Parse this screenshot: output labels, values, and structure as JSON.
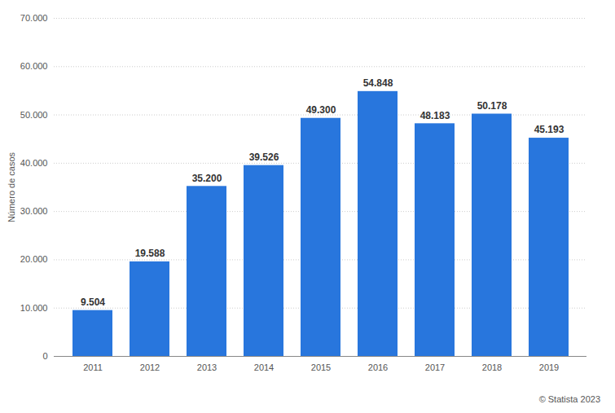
{
  "chart_data": {
    "type": "bar",
    "y_label": "Número de casos",
    "caption": "© Statista 2023",
    "categories": [
      "2011",
      "2012",
      "2013",
      "2014",
      "2015",
      "2016",
      "2017",
      "2018",
      "2019"
    ],
    "values": [
      9504,
      19588,
      35200,
      39526,
      49300,
      54848,
      48183,
      50178,
      45193
    ],
    "value_labels": [
      "9.504",
      "19.588",
      "35.200",
      "39.526",
      "49.300",
      "54.848",
      "48.183",
      "50.178",
      "45.193"
    ],
    "color": "#2876dd",
    "ylim": [
      0,
      70000
    ],
    "yticks": [
      0,
      {
        "value": 10000,
        "label": "10.000"
      },
      {
        "value": 20000,
        "label": "20.000"
      },
      {
        "value": 30000,
        "label": "30.000"
      },
      {
        "value": 40000,
        "label": "40.000"
      },
      {
        "value": 50000,
        "label": "50.000"
      },
      {
        "value": 60000,
        "label": "60.000"
      },
      {
        "value": 70000,
        "label": "70.000"
      }
    ],
    "grid": true,
    "data_labels": true
  }
}
